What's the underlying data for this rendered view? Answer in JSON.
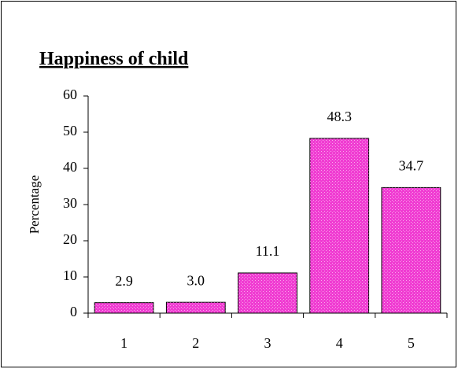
{
  "chart_data": {
    "type": "bar",
    "title": "Happiness of child",
    "y_label": "Percentage",
    "categories": [
      "1",
      "2",
      "3",
      "4",
      "5"
    ],
    "values": [
      2.9,
      3.0,
      11.1,
      48.3,
      34.7
    ],
    "value_labels": [
      "2.9",
      "3.0",
      "11.1",
      "48.3",
      "34.7"
    ],
    "color": "#f03cd2",
    "ylim": [
      0,
      60
    ],
    "yticks": [
      0,
      10,
      20,
      30,
      40,
      50,
      60
    ],
    "grid": false
  }
}
